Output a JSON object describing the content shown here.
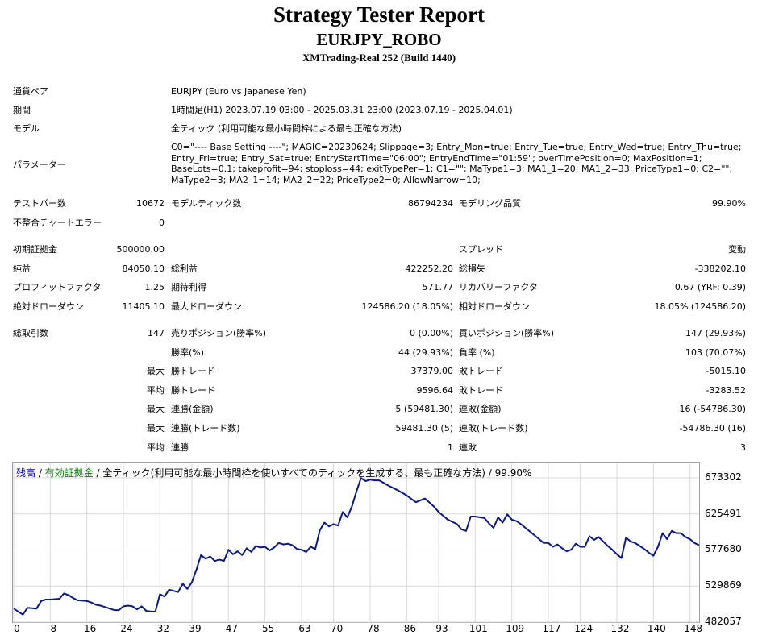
{
  "report": {
    "title": "Strategy Tester Report",
    "expert": "EURJPY_ROBO",
    "server_build": "XMTrading-Real 252 (Build 1440)"
  },
  "settings": {
    "symbol_label": "通貨ペア",
    "symbol_value": "EURJPY (Euro vs Japanese Yen)",
    "period_label": "期間",
    "period_value": "1時間足(H1) 2023.07.19 03:00 - 2025.03.31 23:00 (2023.07.19 - 2025.04.01)",
    "model_label": "モデル",
    "model_value": "全ティック (利用可能な最小時間枠による最も正確な方法)",
    "params_label": "パラメーター",
    "params_value": "C0=\"---- Base Setting ----\"; MAGIC=20230624; Slippage=3; Entry_Mon=true; Entry_Tue=true; Entry_Wed=true; Entry_Thu=true; Entry_Fri=true; Entry_Sat=true; EntryStartTime=\"06:00\"; EntryEndTime=\"01:59\"; overTimePosition=0; MaxPosition=1; BaseLots=0.1; takeprofit=94; stoploss=44; exitTypePer=1; C1=\"\"; MaType1=3; MA1_1=20; MA1_2=33; PriceType1=0; C2=\"\"; MaType2=3; MA2_1=14; MA2_2=22; PriceType2=0; AllowNarrow=10;"
  },
  "bars": {
    "bars_label": "テストバー数",
    "bars_value": "10672",
    "ticks_label": "モデルティック数",
    "ticks_value": "86794234",
    "quality_label": "モデリング品質",
    "quality_value": "99.90%",
    "mismatch_label": "不整合チャートエラー",
    "mismatch_value": "0"
  },
  "results": {
    "deposit_label": "初期証拠金",
    "deposit_value": "500000.00",
    "spread_label": "スプレッド",
    "spread_value": "変動",
    "net_label": "純益",
    "net_value": "84050.10",
    "gross_profit_label": "総利益",
    "gross_profit_value": "422252.20",
    "gross_loss_label": "総損失",
    "gross_loss_value": "-338202.10",
    "pf_label": "プロフィットファクタ",
    "pf_value": "1.25",
    "payoff_label": "期待利得",
    "payoff_value": "571.77",
    "rf_label": "リカバリーファクタ",
    "rf_value": "0.67 (YRF: 0.39)",
    "abs_dd_label": "絶対ドローダウン",
    "abs_dd_value": "11405.10",
    "max_dd_label": "最大ドローダウン",
    "max_dd_value": "124586.20 (18.05%)",
    "rel_dd_label": "相対ドローダウン",
    "rel_dd_value": "18.05% (124586.20)"
  },
  "trades": {
    "total_label": "総取引数",
    "total_value": "147",
    "short_label": "売りポジション(勝率%)",
    "short_value": "0 (0.00%)",
    "long_label": "買いポジション(勝率%)",
    "long_value": "147 (29.93%)",
    "win_rate_label": "勝率(%)",
    "win_rate_value": "44 (29.93%)",
    "loss_rate_label": "負率 (%)",
    "loss_rate_value": "103 (70.07%)",
    "max_label": "最大",
    "avg_label": "平均",
    "largest_win_label": "勝トレード",
    "largest_win_value": "37379.00",
    "largest_loss_label": "敗トレード",
    "largest_loss_value": "-5015.10",
    "avg_win_label": "勝トレード",
    "avg_win_value": "9596.64",
    "avg_loss_label": "敗トレード",
    "avg_loss_value": "-3283.52",
    "max_cons_wins_label": "連勝(金額)",
    "max_cons_wins_value": "5 (59481.30)",
    "max_cons_losses_label": "連敗(金額)",
    "max_cons_losses_value": "16 (-54786.30)",
    "max_cons_profit_label": "連勝(トレード数)",
    "max_cons_profit_value": "59481.30 (5)",
    "max_cons_loss_label": "連敗(トレード数)",
    "max_cons_loss_value": "-54786.30 (16)",
    "avg_cons_wins_label": "連勝",
    "avg_cons_wins_value": "1",
    "avg_cons_losses_label": "連敗",
    "avg_cons_losses_value": "3"
  },
  "chart_legend": {
    "balance": "残高",
    "sep1": " / ",
    "equity": "有効証拠金",
    "sep2": " / ",
    "model": "全ティック(利用可能な最小時間枠を使いすべてのティックを生成する、最も正確な方法)",
    "sep3": " / ",
    "quality": "99.90%"
  },
  "colors": {
    "balance": "#0c1a7a",
    "equity": "#008000",
    "grid": "#d8d8d8"
  },
  "chart_data": {
    "type": "line",
    "title": "",
    "xlabel": "",
    "ylabel": "",
    "xlim": [
      0,
      150
    ],
    "ylim": [
      482057,
      673302
    ],
    "y_ticks": [
      673302,
      625491,
      577680,
      529869,
      482057
    ],
    "x_ticks": [
      0,
      8,
      16,
      24,
      32,
      39,
      47,
      55,
      63,
      70,
      78,
      86,
      93,
      101,
      109,
      117,
      124,
      132,
      140,
      148
    ],
    "grid": true,
    "series": [
      {
        "name": "残高",
        "x": [
          0,
          2,
          3,
          5,
          6,
          7,
          8,
          10,
          11,
          12,
          13,
          14,
          16,
          17,
          18,
          19,
          20,
          21,
          22,
          23,
          24,
          25,
          26,
          27,
          28,
          29,
          30,
          31,
          32,
          33,
          34,
          36,
          37,
          38,
          39,
          40,
          41,
          42,
          43,
          44,
          45,
          46,
          47,
          48,
          49,
          50,
          51,
          52,
          53,
          54,
          55,
          56,
          57,
          58,
          59,
          60,
          61,
          62,
          63,
          64,
          65,
          66,
          67,
          68,
          69,
          70,
          71,
          72,
          73,
          74,
          75,
          76,
          77,
          78,
          79,
          80,
          82,
          84,
          86,
          88,
          90,
          92,
          93,
          95,
          97,
          98,
          99,
          100,
          101,
          103,
          104,
          105,
          106,
          107,
          108,
          109,
          110,
          111,
          112,
          113,
          114,
          115,
          116,
          117,
          118,
          119,
          120,
          121,
          122,
          123,
          124,
          125,
          126,
          127,
          128,
          129,
          130,
          131,
          132,
          133,
          134,
          135,
          136,
          137,
          138,
          139,
          140,
          141,
          142,
          143,
          144,
          145,
          146,
          147,
          148,
          149,
          150
        ],
        "values": [
          500000,
          492000,
          501000,
          500000,
          510000,
          512000,
          512000,
          513000,
          520000,
          518000,
          514000,
          511000,
          510000,
          508000,
          505000,
          504000,
          502000,
          500000,
          498000,
          498000,
          503000,
          504000,
          503000,
          499000,
          503000,
          497000,
          496000,
          496000,
          519000,
          516000,
          525000,
          522000,
          533000,
          526000,
          535000,
          552000,
          571000,
          566000,
          569000,
          563000,
          565000,
          563000,
          578000,
          572000,
          576000,
          571000,
          580000,
          575000,
          583000,
          581000,
          582000,
          577000,
          581000,
          587000,
          585000,
          586000,
          584000,
          579000,
          578000,
          575000,
          582000,
          579000,
          604000,
          614000,
          609000,
          612000,
          610000,
          628000,
          621000,
          635000,
          655000,
          673000,
          669000,
          671000,
          670000,
          670000,
          663000,
          657000,
          650000,
          641000,
          646000,
          635000,
          628000,
          618000,
          612000,
          605000,
          603000,
          622000,
          622000,
          620000,
          613000,
          607000,
          621000,
          614000,
          625000,
          618000,
          616000,
          612000,
          607000,
          602000,
          597000,
          592000,
          587000,
          587000,
          582000,
          585000,
          580000,
          576000,
          578000,
          586000,
          582000,
          582000,
          596000,
          591000,
          595000,
          589000,
          583000,
          578000,
          572000,
          567000,
          594000,
          589000,
          587000,
          583000,
          579000,
          574000,
          570000,
          582000,
          600000,
          592000,
          603000,
          600000,
          600000,
          595000,
          592000,
          587000,
          584000
        ]
      }
    ]
  }
}
